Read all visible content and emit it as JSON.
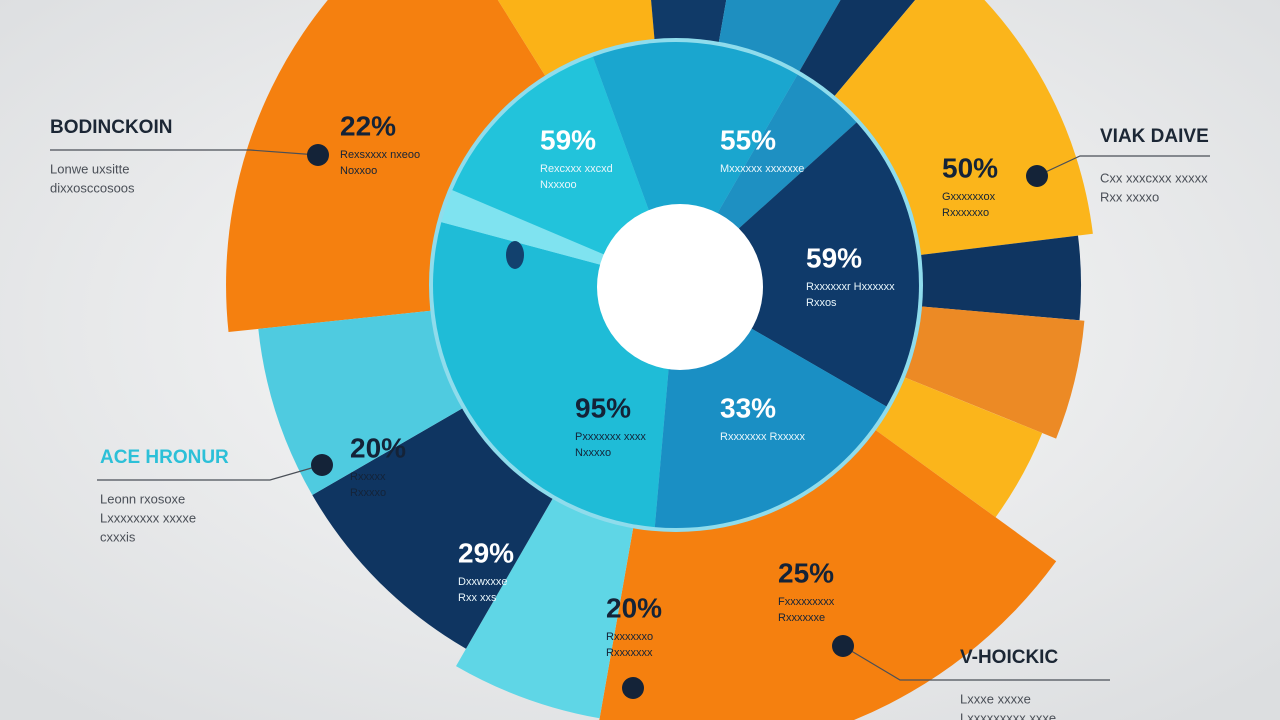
{
  "segments": [
    {
      "value": "22%",
      "text": [
        "Rexsxxxx nxeoo",
        "Noxxoo"
      ]
    },
    {
      "value": "59%",
      "text": [
        "Rexcxxx xxcxd",
        "Nxxxoo"
      ]
    },
    {
      "value": "55%",
      "text": [
        "Mxxxxxx xxxxxxe"
      ]
    },
    {
      "value": "50%",
      "text": [
        "Gxxxxxxox",
        "Rxxxxxxo"
      ]
    },
    {
      "value": "59%",
      "text": [
        "Rxxxxxxr Hxxxxxx",
        "Rxxos"
      ]
    },
    {
      "value": "95%",
      "text": [
        "Pxxxxxxx xxxx",
        "Nxxxxo"
      ]
    },
    {
      "value": "33%",
      "text": [
        "Rxxxxxxx Rxxxxx"
      ]
    },
    {
      "value": "20%",
      "text": [
        "Rxxxxx",
        "Rxxxxo"
      ]
    },
    {
      "value": "29%",
      "text": [
        "Dxxwxxxe",
        "Rxx xxs"
      ]
    },
    {
      "value": "20%",
      "text": [
        "Rxxxxxxo",
        "Rxxxxxxx"
      ]
    },
    {
      "value": "25%",
      "text": [
        "Fxxxxxxxxx",
        "Rxxxxxxe"
      ]
    }
  ],
  "callouts": [
    {
      "title": "BODINCKOIN",
      "text": [
        "Lonwe uxsitte",
        "dixxosccosoos"
      ]
    },
    {
      "title": "VIAK DAIVE",
      "text": [
        "Cxx xxxcxxx xxxxx",
        "Rxx xxxxo"
      ]
    },
    {
      "title": "ACE HRONUR",
      "text": [
        "Leonn rxosoxe",
        "Lxxxxxxxx xxxxe",
        "cxxxis"
      ]
    },
    {
      "title": "V-HOICKIC",
      "text": [
        "Lxxxe xxxxe",
        "Lxxxxxxxxx xxxe"
      ]
    }
  ]
}
